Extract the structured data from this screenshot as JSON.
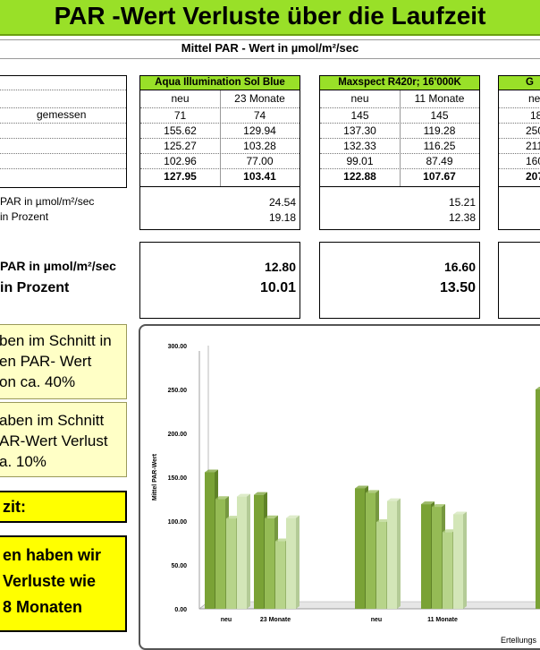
{
  "title": "PAR -Wert Verluste über die Laufzeit",
  "subtitle": "Mittel PAR - Wert in µmol/m²/sec",
  "left_labels": {
    "gemessen": "gemessen",
    "diff_par": "PAR in µmol/m²/sec",
    "diff_pct": "in Prozent",
    "avg_par": "PAR in µmol/m²/sec",
    "avg_pct": "in Prozent"
  },
  "groups": [
    {
      "name": "Aqua Illumination Sol Blue",
      "col1": "neu",
      "col2": "23 Monate",
      "rows": [
        [
          "71",
          "74"
        ],
        [
          "155.62",
          "129.94"
        ],
        [
          "125.27",
          "103.28"
        ],
        [
          "102.96",
          "77.00"
        ],
        [
          "127.95",
          "103.41"
        ]
      ],
      "diff_par": "24.54",
      "diff_pct": "19.18",
      "avg_par": "12.80",
      "avg_pct": "10.01"
    },
    {
      "name": "Maxspect R420r; 16'000K",
      "col1": "neu",
      "col2": "11 Monate",
      "rows": [
        [
          "145",
          "145"
        ],
        [
          "137.30",
          "119.28"
        ],
        [
          "132.33",
          "116.25"
        ],
        [
          "99.01",
          "87.49"
        ],
        [
          "122.88",
          "107.67"
        ]
      ],
      "diff_par": "15.21",
      "diff_pct": "12.38",
      "avg_par": "16.60",
      "avg_pct": "13.50"
    },
    {
      "name": "G",
      "col1": "ne",
      "rows": [
        [
          "18"
        ],
        [
          "250"
        ],
        [
          "211"
        ],
        [
          "160"
        ],
        [
          "207"
        ]
      ]
    }
  ],
  "notes": {
    "note1": [
      "ben im Schnitt in",
      "en PAR- Wert",
      "on ca. 40%"
    ],
    "note2": [
      "aben im Schnitt",
      "AR-Wert Verlust",
      "a. 10%"
    ],
    "fazit": "zit:",
    "conclusion": [
      "en haben wir",
      "Verluste wie",
      "8 Monaten"
    ]
  },
  "footer": "Ertellungs",
  "colors": {
    "title_green": "#99e028",
    "header_green": "#99e028",
    "note_yellow": "#ffffc6",
    "fazit_yellow": "#ffff00",
    "bar_dark": "#7aa236",
    "bar_mid": "#95bb55",
    "bar_light": "#b7d48a",
    "bar_pale": "#d3e6b8"
  },
  "chart_data": {
    "type": "bar",
    "title": "",
    "xlabel": "",
    "ylabel": "Mittel PAR-Wert",
    "ylim": [
      0,
      300
    ],
    "yticks": [
      "0.00",
      "50.00",
      "100.00",
      "150.00",
      "200.00",
      "250.00",
      "300.00"
    ],
    "categories": [
      "neu",
      "23 Monate",
      "neu",
      "11 Monate"
    ],
    "series": [
      {
        "values": [
          155.62,
          129.94,
          137.3,
          119.28
        ]
      },
      {
        "values": [
          125.27,
          103.28,
          132.33,
          116.25
        ]
      },
      {
        "values": [
          102.96,
          77.0,
          99.01,
          87.49
        ]
      },
      {
        "values": [
          127.95,
          103.41,
          122.88,
          107.67
        ]
      }
    ],
    "partial_bar_value": 250,
    "grid": false,
    "legend": "none"
  }
}
